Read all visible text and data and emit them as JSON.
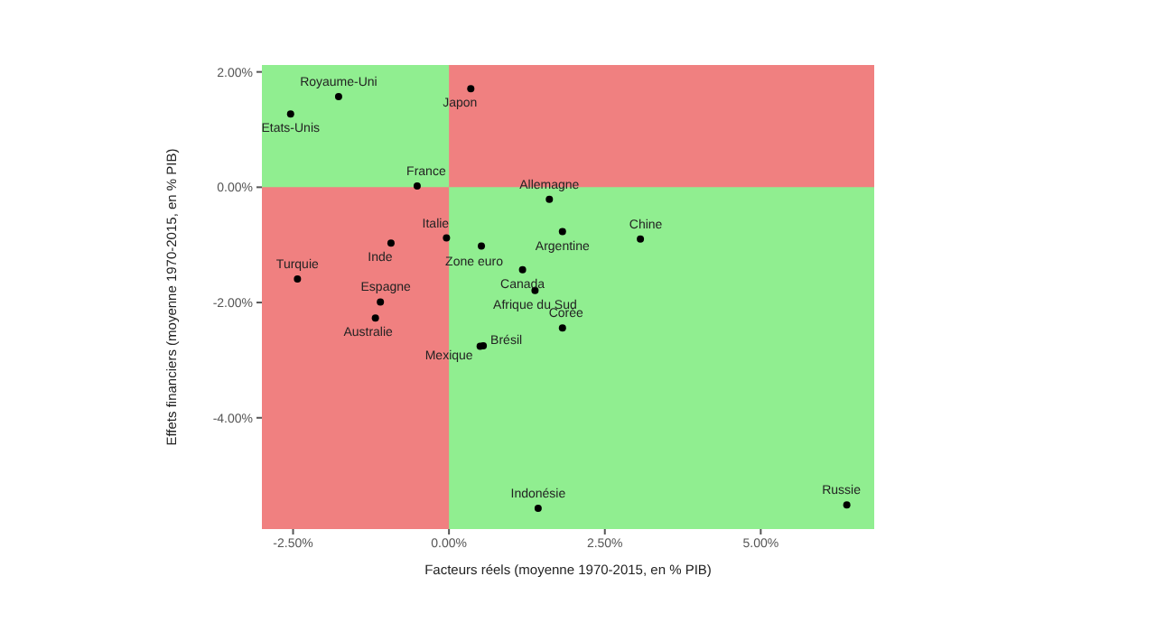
{
  "chart_data": {
    "type": "scatter",
    "xlabel": "Facteurs réels (moyenne 1970-2015, en % PIB)",
    "ylabel": "Effets financiers (moyenne 1970-2015, en % PIB)",
    "xlim": [
      -3,
      6.82
    ],
    "ylim": [
      -5.93,
      2.12
    ],
    "xticks": [
      {
        "value": -2.5,
        "label": "-2.50%"
      },
      {
        "value": 0,
        "label": "0.00%"
      },
      {
        "value": 2.5,
        "label": "2.50%"
      },
      {
        "value": 5,
        "label": "5.00%"
      }
    ],
    "yticks": [
      {
        "value": -4,
        "label": "-4.00%"
      },
      {
        "value": -2,
        "label": "-2.00%"
      },
      {
        "value": 0,
        "label": "0.00%"
      },
      {
        "value": 2,
        "label": "2.00%"
      }
    ],
    "grid": false,
    "legend": false,
    "marker": "circle",
    "bands": [
      {
        "axis": "x",
        "from": -3,
        "to": 0,
        "color": "#f08080"
      },
      {
        "axis": "y",
        "from": 0,
        "to": 2.12,
        "color": "#f08080"
      }
    ],
    "series": [
      {
        "color": "#000000",
        "x": [
          -1.77,
          -2.54,
          0.35,
          -0.51,
          1.61,
          1.82,
          3.07,
          -0.04,
          -0.93,
          0.52,
          1.18,
          -2.43,
          1.38,
          -1.1,
          -1.18,
          1.82,
          0.55,
          0.5,
          1.43,
          6.38
        ],
        "values": [
          1.57,
          1.27,
          1.71,
          0.02,
          -0.21,
          -0.77,
          -0.9,
          -0.88,
          -0.97,
          -1.02,
          -1.43,
          -1.59,
          -1.79,
          -1.99,
          -2.27,
          -2.44,
          -2.75,
          -2.76,
          -5.57,
          -5.51
        ]
      }
    ],
    "annotations": [
      {
        "text": "Royaume-Uni",
        "x": -1.77,
        "y": 1.57
      },
      {
        "text": "Etats-Unis",
        "x": -2.54,
        "y": 1.27
      },
      {
        "text": "Japon",
        "x": 0.35,
        "y": 1.71
      },
      {
        "text": "France",
        "x": -0.51,
        "y": 0.02
      },
      {
        "text": "Allemagne",
        "x": 1.61,
        "y": -0.21
      },
      {
        "text": "Argentine",
        "x": 1.82,
        "y": -0.77
      },
      {
        "text": "Chine",
        "x": 3.07,
        "y": -0.9
      },
      {
        "text": "Italie",
        "x": -0.04,
        "y": -0.88
      },
      {
        "text": "Inde",
        "x": -0.93,
        "y": -0.97
      },
      {
        "text": "Zone euro",
        "x": 0.52,
        "y": -1.02
      },
      {
        "text": "Canada",
        "x": 1.18,
        "y": -1.43
      },
      {
        "text": "Turquie",
        "x": -2.43,
        "y": -1.59
      },
      {
        "text": "Afrique du Sud",
        "x": 1.38,
        "y": -1.79
      },
      {
        "text": "Espagne",
        "x": -1.1,
        "y": -1.99
      },
      {
        "text": "Australie",
        "x": -1.18,
        "y": -2.27
      },
      {
        "text": "Corée",
        "x": 1.82,
        "y": -2.44
      },
      {
        "text": "Brésil",
        "x": 0.55,
        "y": -2.75
      },
      {
        "text": "Mexique",
        "x": 0.5,
        "y": -2.76
      },
      {
        "text": "Indonésie",
        "x": 1.43,
        "y": -5.57
      },
      {
        "text": "Russie",
        "x": 6.38,
        "y": -5.51
      }
    ]
  }
}
